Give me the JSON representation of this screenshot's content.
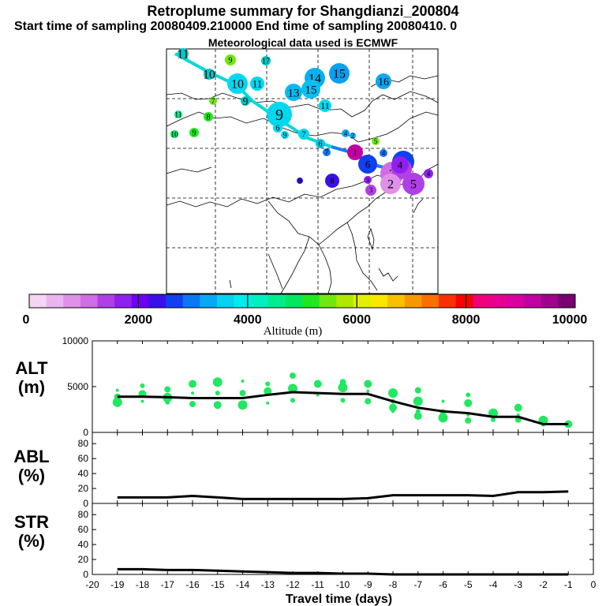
{
  "header": {
    "title": "Retroplume summary for Shangdianzi_200804",
    "subtitle": "Start time of sampling 20080409.210000     End time of sampling 20080410.     0",
    "met_line": "Meteorological data used is ECMWF"
  },
  "colorbar": {
    "label": "Altitude (m)",
    "tick_labels": [
      "0",
      "2000",
      "4000",
      "6000",
      "8000",
      "10000"
    ],
    "colors": [
      "#f4d6f4",
      "#ecb4ee",
      "#e090e8",
      "#d06ce6",
      "#b040e6",
      "#9020ee",
      "#7000f0",
      "#3a10e8",
      "#1040f0",
      "#0a78f4",
      "#08a8f4",
      "#08d0f0",
      "#00ecec",
      "#00f0c0",
      "#00ec90",
      "#00e860",
      "#20e820",
      "#70e810",
      "#b0e800",
      "#e0f000",
      "#f8e800",
      "#f8c000",
      "#f89800",
      "#f87000",
      "#f83000",
      "#f80000",
      "#f0007a",
      "#e80090",
      "#d800a0",
      "#c000a0",
      "#a00090",
      "#780070"
    ]
  },
  "map": {
    "markers": [
      {
        "label": "11",
        "color": "#00c8c8"
      },
      {
        "label": "10",
        "color": "#00c8c8"
      },
      {
        "label": "9",
        "color": "#70e810"
      },
      {
        "label": "17",
        "color": "#00c8c8"
      },
      {
        "label": "10",
        "color": "#00d8f0"
      },
      {
        "label": "11",
        "color": "#00d8f0"
      },
      {
        "label": "9",
        "color": "#00c8c8"
      },
      {
        "label": "14",
        "color": "#08b0f0"
      },
      {
        "label": "15",
        "color": "#08a0f0"
      },
      {
        "label": "16",
        "color": "#08a8f4"
      },
      {
        "label": "13",
        "color": "#08b8f0"
      },
      {
        "label": "15",
        "color": "#08c0f0"
      },
      {
        "label": "11",
        "color": "#00d8f0"
      },
      {
        "label": "9",
        "color": "#00d8f0"
      },
      {
        "label": "7",
        "color": "#70e810"
      },
      {
        "label": "8",
        "color": "#20e820"
      },
      {
        "label": "11",
        "color": "#00e890"
      },
      {
        "label": "10",
        "color": "#00e860"
      },
      {
        "label": "9",
        "color": "#20e820"
      },
      {
        "label": "6",
        "color": "#00d8f0"
      },
      {
        "label": "9",
        "color": "#00d8f0"
      },
      {
        "label": "7",
        "color": "#00d8f0"
      },
      {
        "label": "6",
        "color": "#00c8e8"
      },
      {
        "label": "7",
        "color": "#0a78f4"
      },
      {
        "label": "4",
        "color": "#08a8f4"
      },
      {
        "label": "2",
        "color": "#08a8f4"
      },
      {
        "label": "5",
        "color": "#70e810"
      },
      {
        "label": "1",
        "color": "#c000a0"
      },
      {
        "label": "6",
        "color": "#1040f0"
      },
      {
        "label": "4",
        "color": "#0a78f4"
      },
      {
        "label": "3",
        "color": "#1040f0"
      },
      {
        "label": "2",
        "color": "#d06ce6"
      },
      {
        "label": "3",
        "color": "#b040e6"
      },
      {
        "label": "4",
        "color": "#9020ee"
      },
      {
        "label": "2",
        "color": "#e090e8"
      },
      {
        "label": "5",
        "color": "#b040e6"
      },
      {
        "label": "8",
        "color": "#3a10e8"
      },
      {
        "label": "9",
        "color": "#3a10e8"
      },
      {
        "label": "3",
        "color": "#9020ee"
      },
      {
        "label": "3",
        "color": "#b040e6"
      },
      {
        "label": "4",
        "color": "#9020ee"
      }
    ]
  },
  "chart_data": [
    {
      "type": "line",
      "panel": "ALT",
      "ylabel": "ALT (m)",
      "ylim": [
        0,
        10000
      ],
      "yticks": [
        "0",
        "5000",
        "10000"
      ],
      "x": [
        -19,
        -18,
        -17,
        -16,
        -15,
        -14,
        -13,
        -12,
        -11,
        -10,
        -9,
        -8,
        -7,
        -6,
        -5,
        -4,
        -3,
        -2,
        -1
      ],
      "values": [
        3900,
        3900,
        3850,
        3750,
        3750,
        3750,
        4100,
        4400,
        4300,
        4200,
        4200,
        3400,
        2700,
        2300,
        2100,
        1700,
        1700,
        900,
        900
      ],
      "scatter": {
        "color": "#20e860",
        "points": [
          {
            "x": -19,
            "y": 4600
          },
          {
            "x": -19,
            "y": 3900
          },
          {
            "x": -19,
            "y": 3300
          },
          {
            "x": -18,
            "y": 5100
          },
          {
            "x": -18,
            "y": 4200
          },
          {
            "x": -18,
            "y": 3400
          },
          {
            "x": -17,
            "y": 4700
          },
          {
            "x": -17,
            "y": 3800
          },
          {
            "x": -17,
            "y": 3300
          },
          {
            "x": -16,
            "y": 5300
          },
          {
            "x": -16,
            "y": 4300
          },
          {
            "x": -16,
            "y": 3100
          },
          {
            "x": -15,
            "y": 5500
          },
          {
            "x": -15,
            "y": 4300
          },
          {
            "x": -15,
            "y": 3000
          },
          {
            "x": -14,
            "y": 5600
          },
          {
            "x": -14,
            "y": 4300
          },
          {
            "x": -14,
            "y": 3000
          },
          {
            "x": -13,
            "y": 5300
          },
          {
            "x": -13,
            "y": 4500
          },
          {
            "x": -13,
            "y": 3200
          },
          {
            "x": -12,
            "y": 6200
          },
          {
            "x": -12,
            "y": 4800
          },
          {
            "x": -12,
            "y": 3500
          },
          {
            "x": -11,
            "y": 5300
          },
          {
            "x": -11,
            "y": 4100
          },
          {
            "x": -10,
            "y": 5500
          },
          {
            "x": -10,
            "y": 4900
          },
          {
            "x": -10,
            "y": 3500
          },
          {
            "x": -9,
            "y": 5300
          },
          {
            "x": -9,
            "y": 4500
          },
          {
            "x": -9,
            "y": 3400
          },
          {
            "x": -8,
            "y": 4300
          },
          {
            "x": -8,
            "y": 3400
          },
          {
            "x": -8,
            "y": 2700
          },
          {
            "x": -8,
            "y": 2300
          },
          {
            "x": -7,
            "y": 4600
          },
          {
            "x": -7,
            "y": 3400
          },
          {
            "x": -7,
            "y": 2300
          },
          {
            "x": -7,
            "y": 1800
          },
          {
            "x": -6,
            "y": 3400
          },
          {
            "x": -6,
            "y": 2200
          },
          {
            "x": -6,
            "y": 1600
          },
          {
            "x": -5,
            "y": 4100
          },
          {
            "x": -5,
            "y": 3200
          },
          {
            "x": -5,
            "y": 1900
          },
          {
            "x": -5,
            "y": 1300
          },
          {
            "x": -4,
            "y": 2100
          },
          {
            "x": -4,
            "y": 1400
          },
          {
            "x": -3,
            "y": 2700
          },
          {
            "x": -3,
            "y": 1900
          },
          {
            "x": -3,
            "y": 1400
          },
          {
            "x": -2,
            "y": 1300
          },
          {
            "x": -2,
            "y": 900
          },
          {
            "x": -1,
            "y": 900
          }
        ]
      }
    },
    {
      "type": "line",
      "panel": "ABL",
      "ylabel": "ABL (%)",
      "ylim": [
        0,
        95
      ],
      "yticks": [
        "0",
        "20",
        "40",
        "60",
        "80"
      ],
      "x": [
        -19,
        -18,
        -17,
        -16,
        -15,
        -14,
        -13,
        -12,
        -11,
        -10,
        -9,
        -8,
        -7,
        -6,
        -5,
        -4,
        -3,
        -2,
        -1
      ],
      "values": [
        8,
        8,
        8,
        10,
        8,
        6,
        6,
        6,
        6,
        6,
        7,
        11,
        11,
        11,
        11,
        10,
        15,
        15,
        16
      ]
    },
    {
      "type": "line",
      "panel": "STR",
      "ylabel": "STR (%)",
      "ylim": [
        0,
        95
      ],
      "yticks": [
        "0",
        "20",
        "40",
        "60",
        "80"
      ],
      "x": [
        -19,
        -18,
        -17,
        -16,
        -15,
        -14,
        -13,
        -12,
        -11,
        -10,
        -9,
        -8,
        -7,
        -6,
        -5,
        -4,
        -3,
        -2,
        -1
      ],
      "values": [
        7,
        7,
        6,
        6,
        5,
        4,
        3,
        2,
        2,
        1,
        1,
        0,
        0,
        0,
        0,
        0,
        0,
        0,
        0
      ],
      "xlabel": "Travel time (days)",
      "xticks": [
        "-20",
        "-19",
        "-18",
        "-17",
        "-16",
        "-15",
        "-14",
        "-13",
        "-12",
        "-11",
        "-10",
        "-9",
        "-8",
        "-7",
        "-6",
        "-5",
        "-4",
        "-3",
        "-2",
        "-1",
        "0"
      ]
    }
  ],
  "panel_labels": {
    "alt": [
      "ALT",
      "(m)"
    ],
    "abl": [
      "ABL",
      "(%)"
    ],
    "str": [
      "STR",
      "(%)"
    ]
  }
}
